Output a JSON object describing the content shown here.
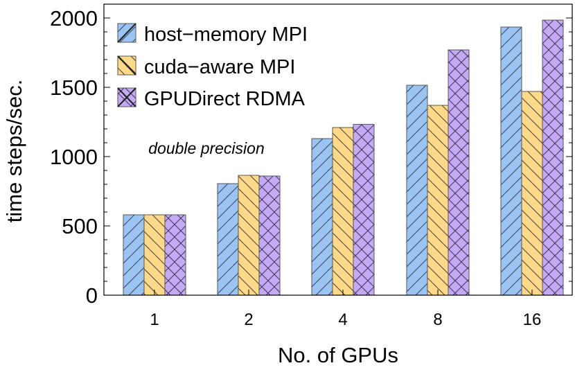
{
  "chart_data": {
    "type": "bar",
    "categories": [
      "1",
      "2",
      "4",
      "8",
      "16"
    ],
    "series": [
      {
        "name": "host−memory MPI",
        "values": [
          580,
          805,
          1130,
          1515,
          1935
        ],
        "color": "#9cc4f2",
        "hatch": "diagonal"
      },
      {
        "name": "cuda−aware MPI",
        "values": [
          580,
          865,
          1210,
          1370,
          1470
        ],
        "color": "#ffd98a",
        "hatch": "anti-diagonal"
      },
      {
        "name": "GPUDirect RDMA",
        "values": [
          580,
          860,
          1233,
          1770,
          1985
        ],
        "color": "#c4aaf4",
        "hatch": "cross"
      }
    ],
    "xlabel": "No. of GPUs",
    "ylabel": "time steps/sec.",
    "ylim": [
      0,
      2100
    ],
    "yticks": [
      "0",
      "500",
      "1000",
      "1500",
      "2000"
    ],
    "annotation": "double precision",
    "legend_position": "top-left",
    "grid": false
  }
}
